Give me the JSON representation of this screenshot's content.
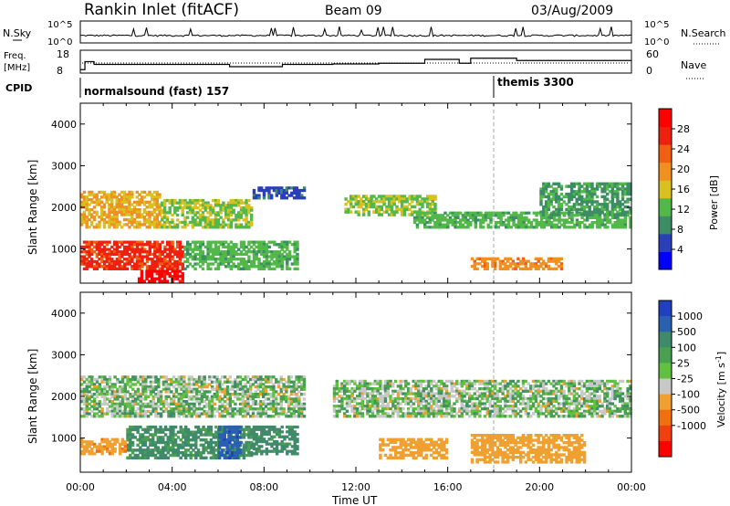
{
  "header": {
    "station": "Rankin Inlet (fitACF)",
    "beam": "Beam 09",
    "date": "03/Aug/2009"
  },
  "nsky_panel": {
    "left_label": "N.Sky",
    "left_ticks": [
      "10^5",
      "10^0"
    ],
    "right_ticks": [
      "10^5",
      "10^0"
    ],
    "right_label": "N.Search"
  },
  "freq_panel": {
    "left_label_1": "Freq.",
    "left_label_2": "[MHz]",
    "left_ticks": [
      "18",
      "8"
    ],
    "right_ticks": [
      "60",
      "0"
    ],
    "right_label": "Nave"
  },
  "cpid": {
    "label": "CPID",
    "program_1": "normalsound (fast) 157",
    "program_2": "themis 3300",
    "switch_hour": 18.0
  },
  "x_axis": {
    "label": "Time UT",
    "ticks": [
      "00:00",
      "04:00",
      "08:00",
      "12:00",
      "16:00",
      "20:00",
      "00:00"
    ]
  },
  "y_axis": {
    "label": "Slant Range [km]",
    "ticks": [
      "1000",
      "2000",
      "3000",
      "4000"
    ]
  },
  "power_colorbar": {
    "label": "Power [dB]",
    "ticks": [
      "4",
      "8",
      "12",
      "16",
      "20",
      "24",
      "28"
    ],
    "colors": [
      "#0000ff",
      "#2a3fb8",
      "#3c8c64",
      "#52b84a",
      "#d8c020",
      "#f09020",
      "#f06010",
      "#ee2010",
      "#ff0000"
    ]
  },
  "velocity_colorbar": {
    "label": "Velocity [m s^-1]",
    "ticks": [
      "1000",
      "500",
      "100",
      "25",
      "-25",
      "-100",
      "-500",
      "-1000"
    ],
    "colors": [
      "#2040c0",
      "#2a60b0",
      "#3f8a6a",
      "#4aa050",
      "#60c040",
      "#c8c8c8",
      "#f0a030",
      "#f07010",
      "#f04010",
      "#ff0000"
    ]
  },
  "chart_data": [
    {
      "type": "line",
      "panel": "sky noise",
      "xlabel": "",
      "ylabel": "N.Sky",
      "x_range_hours": [
        0,
        24
      ],
      "y_scale": "log",
      "ylim": [
        1,
        100000
      ]
    },
    {
      "type": "line",
      "panel": "frequency",
      "xlabel": "",
      "ylabel": "Freq. [MHz]",
      "x_range_hours": [
        0,
        24
      ],
      "ylim": [
        8,
        18
      ],
      "series": [
        {
          "name": "Freq.",
          "x": [
            0,
            0.2,
            0.6,
            1.5,
            3,
            6,
            6.5,
            7.5,
            8.8,
            9.8,
            11,
            13,
            14.7,
            15,
            16.5,
            17,
            18,
            19,
            22,
            24
          ],
          "y": [
            9.5,
            13,
            11.8,
            11.8,
            11.8,
            11.8,
            10.8,
            10.8,
            11.8,
            11.8,
            12,
            12.3,
            12.3,
            14,
            12.3,
            14.5,
            14.5,
            13.5,
            13.5,
            13.5
          ]
        }
      ]
    },
    {
      "type": "heatmap",
      "panel": "power",
      "title": "",
      "xlabel": "Time UT",
      "ylabel": "Slant Range [km]",
      "x_range_hours": [
        0,
        24
      ],
      "ylim": [
        180,
        4500
      ],
      "color_label": "Power [dB]",
      "color_range": [
        0,
        32
      ],
      "regions": [
        {
          "t0": 0.0,
          "t1": 3.5,
          "r0": 1500,
          "r1": 2400,
          "value": 18
        },
        {
          "t0": 3.5,
          "t1": 7.5,
          "r0": 1500,
          "r1": 2200,
          "value": 14
        },
        {
          "t0": 0.0,
          "t1": 4.5,
          "r0": 500,
          "r1": 1200,
          "value": 26
        },
        {
          "t0": 4.5,
          "t1": 9.5,
          "r0": 500,
          "r1": 1200,
          "value": 12
        },
        {
          "t0": 2.5,
          "t1": 4.5,
          "r0": 200,
          "r1": 500,
          "value": 30
        },
        {
          "t0": 7.5,
          "t1": 9.8,
          "r0": 2200,
          "r1": 2500,
          "value": 6
        },
        {
          "t0": 11.5,
          "t1": 15.5,
          "r0": 1800,
          "r1": 2300,
          "value": 14
        },
        {
          "t0": 14.5,
          "t1": 24.0,
          "r0": 1500,
          "r1": 1900,
          "value": 12
        },
        {
          "t0": 20.0,
          "t1": 24.0,
          "r0": 1800,
          "r1": 2600,
          "value": 10
        },
        {
          "t0": 17.0,
          "t1": 21.0,
          "r0": 500,
          "r1": 800,
          "value": 20
        }
      ]
    },
    {
      "type": "heatmap",
      "panel": "velocity",
      "title": "",
      "xlabel": "Time UT",
      "ylabel": "Slant Range [km]",
      "x_range_hours": [
        0,
        24
      ],
      "ylim": [
        180,
        4500
      ],
      "color_label": "Velocity [m s^-1]",
      "color_range": [
        -1000,
        1000
      ],
      "regions": [
        {
          "t0": 0.0,
          "t1": 9.8,
          "r0": 1500,
          "r1": 2500,
          "value": 0
        },
        {
          "t0": 11.0,
          "t1": 24.0,
          "r0": 1500,
          "r1": 2400,
          "value": 0
        },
        {
          "t0": 2.0,
          "t1": 7.5,
          "r0": 500,
          "r1": 1300,
          "value": 150
        },
        {
          "t0": 7.5,
          "t1": 9.5,
          "r0": 600,
          "r1": 1300,
          "value": 200
        },
        {
          "t0": 6.0,
          "t1": 7.0,
          "r0": 500,
          "r1": 1300,
          "value": 900
        },
        {
          "t0": 0.0,
          "t1": 2.0,
          "r0": 600,
          "r1": 1000,
          "value": -400
        },
        {
          "t0": 13.0,
          "t1": 16.0,
          "r0": 500,
          "r1": 1000,
          "value": -300
        },
        {
          "t0": 17.0,
          "t1": 22.0,
          "r0": 400,
          "r1": 1100,
          "value": -300
        }
      ]
    }
  ]
}
